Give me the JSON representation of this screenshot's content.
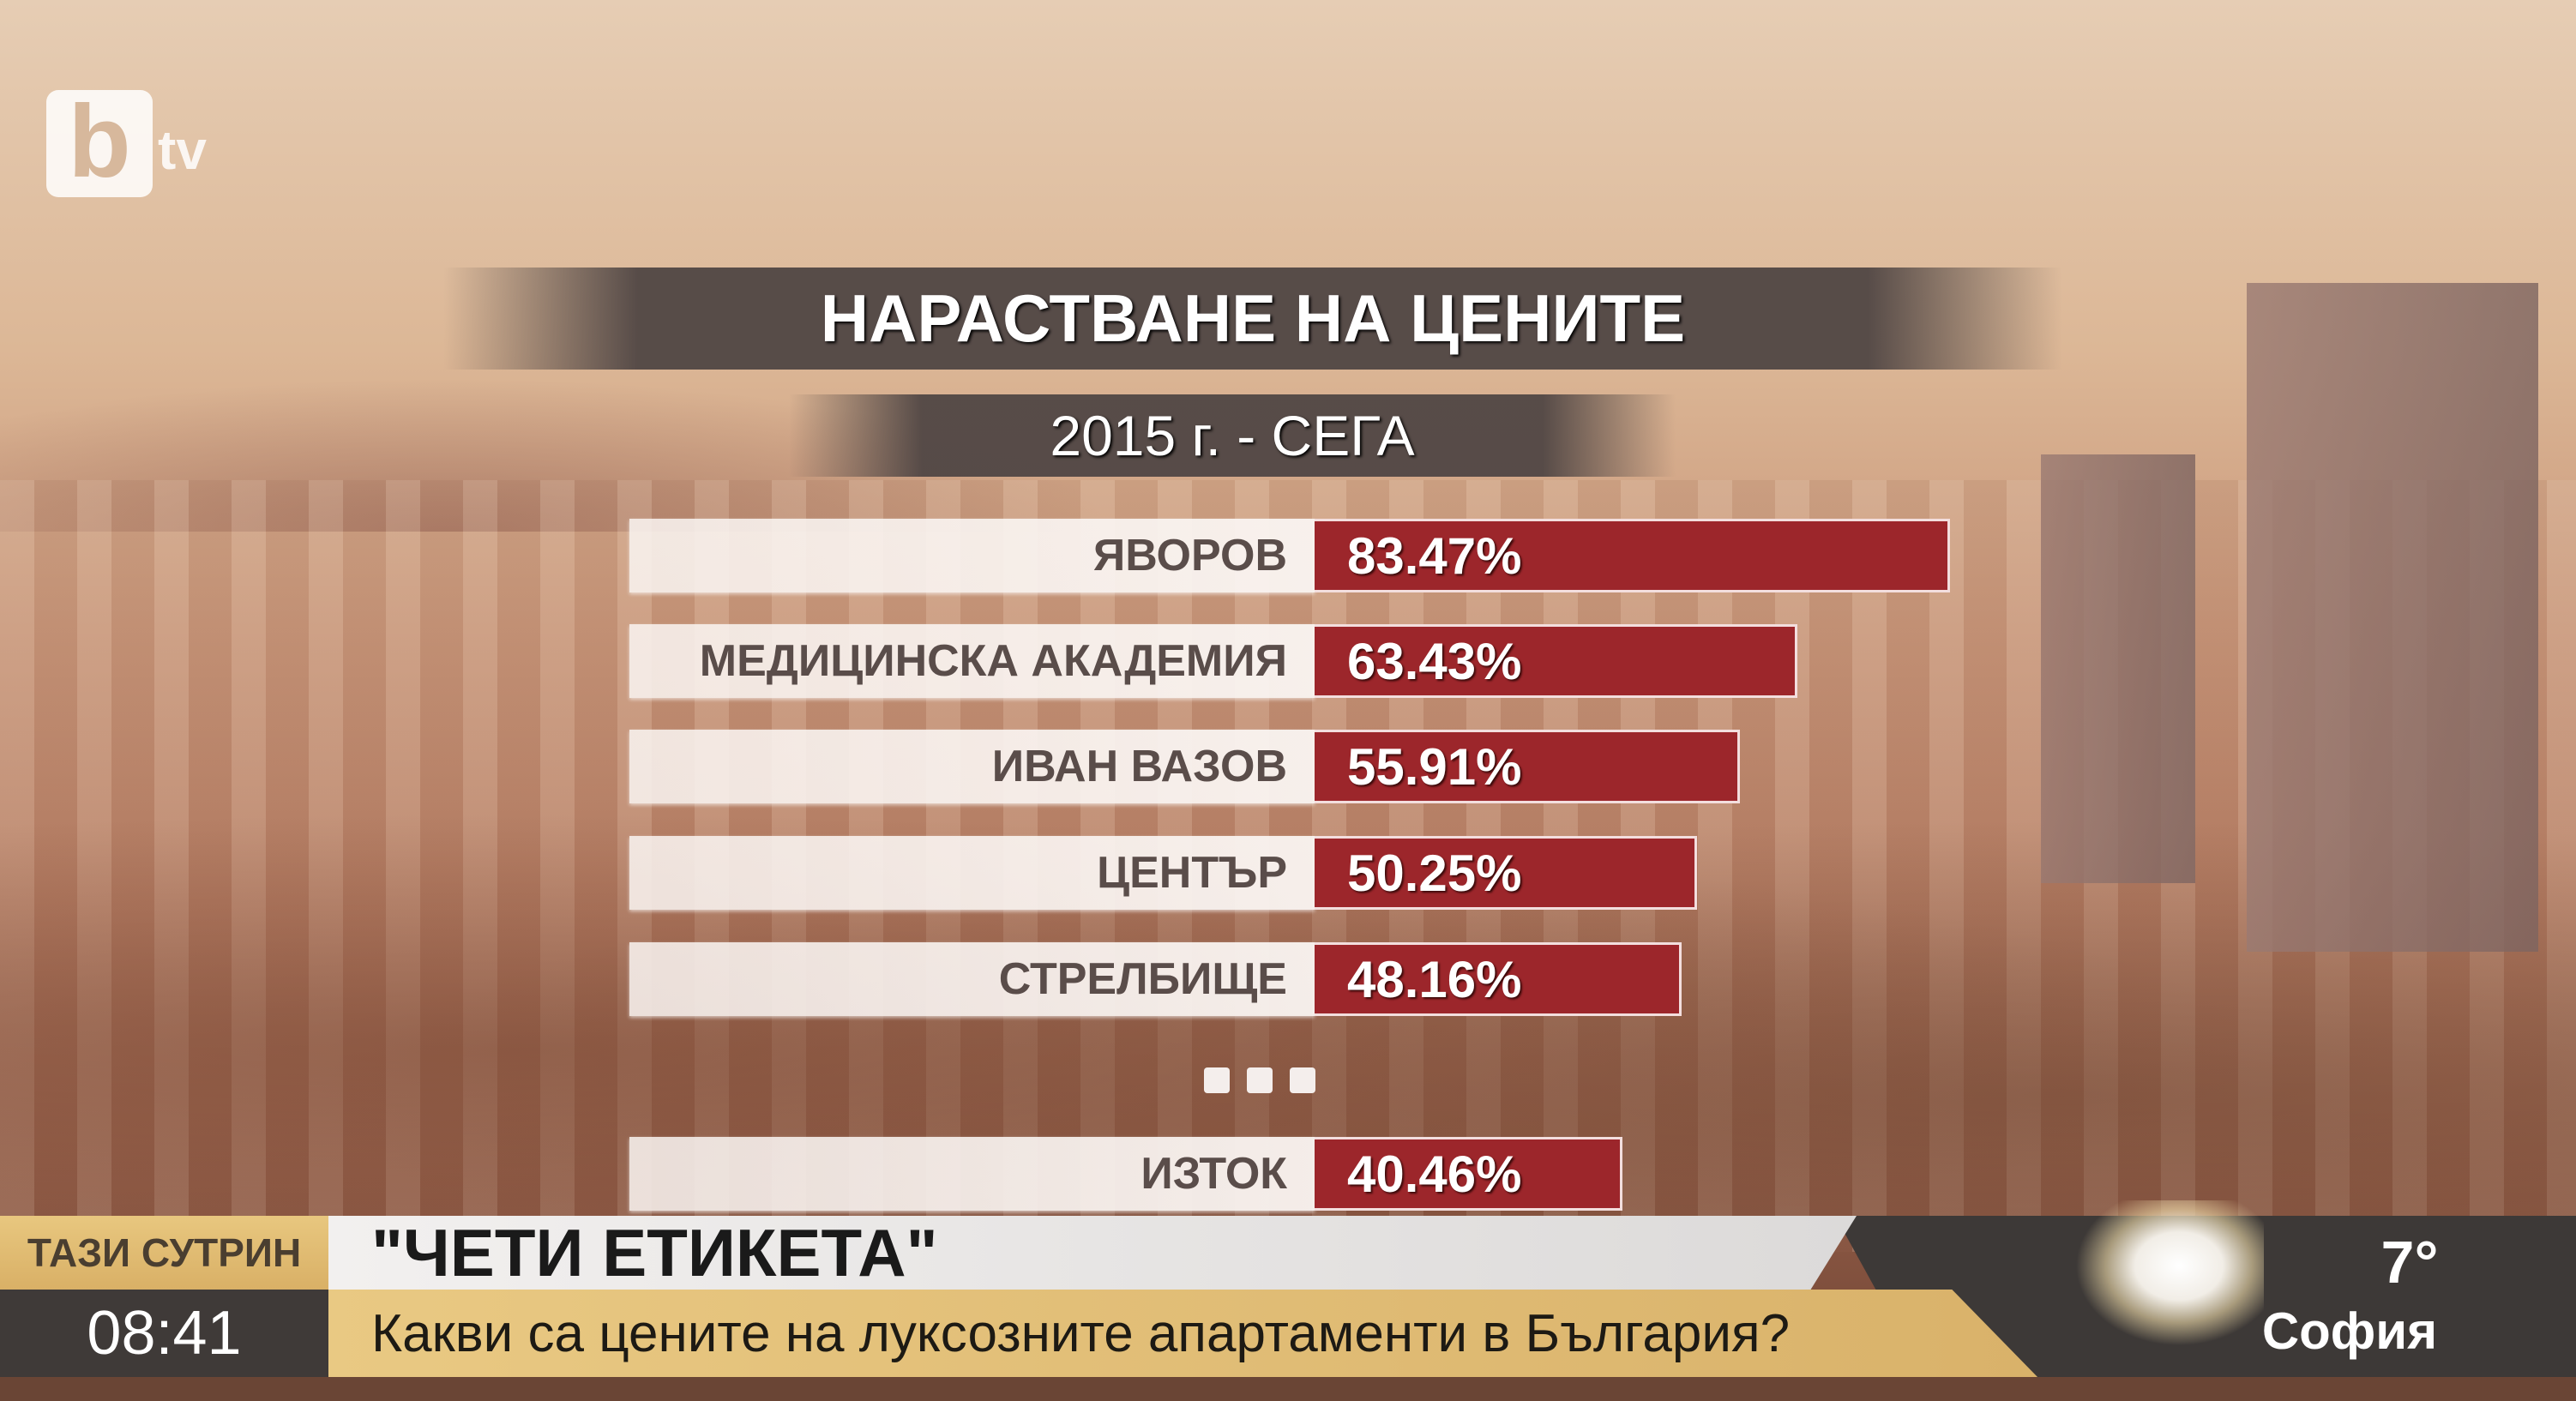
{
  "channel_logo": {
    "letter": "b",
    "suffix": "tv"
  },
  "chart_data": {
    "type": "bar",
    "orientation": "horizontal",
    "title": "НАРАСТВАНЕ НА ЦЕНИТЕ",
    "subtitle": "2015 г. - СЕГА",
    "categories": [
      "ЯВОРОВ",
      "МЕДИЦИНСКА АКАДЕМИЯ",
      "ИВАН ВАЗОВ",
      "ЦЕНТЪР",
      "СТРЕЛБИЩЕ",
      "ИЗТОК"
    ],
    "values": [
      83.47,
      63.43,
      55.91,
      50.25,
      48.16,
      40.46
    ],
    "value_labels": [
      "83.47%",
      "63.43%",
      "55.91%",
      "50.25%",
      "48.16%",
      "40.46%"
    ],
    "gap_marker_before_index": 5,
    "bar_color": "#9c262b",
    "grid": false
  },
  "ticker": {
    "show_label": "ТАЗИ СУТРИН",
    "time": "08:41",
    "headline": "\"ЧЕТИ ЕТИКЕТА\"",
    "subheadline": "Какви са цените на луксозните апартаменти в България?",
    "weather": {
      "icon": "sun-cloud-icon",
      "temperature": "7°",
      "city": "София"
    }
  }
}
